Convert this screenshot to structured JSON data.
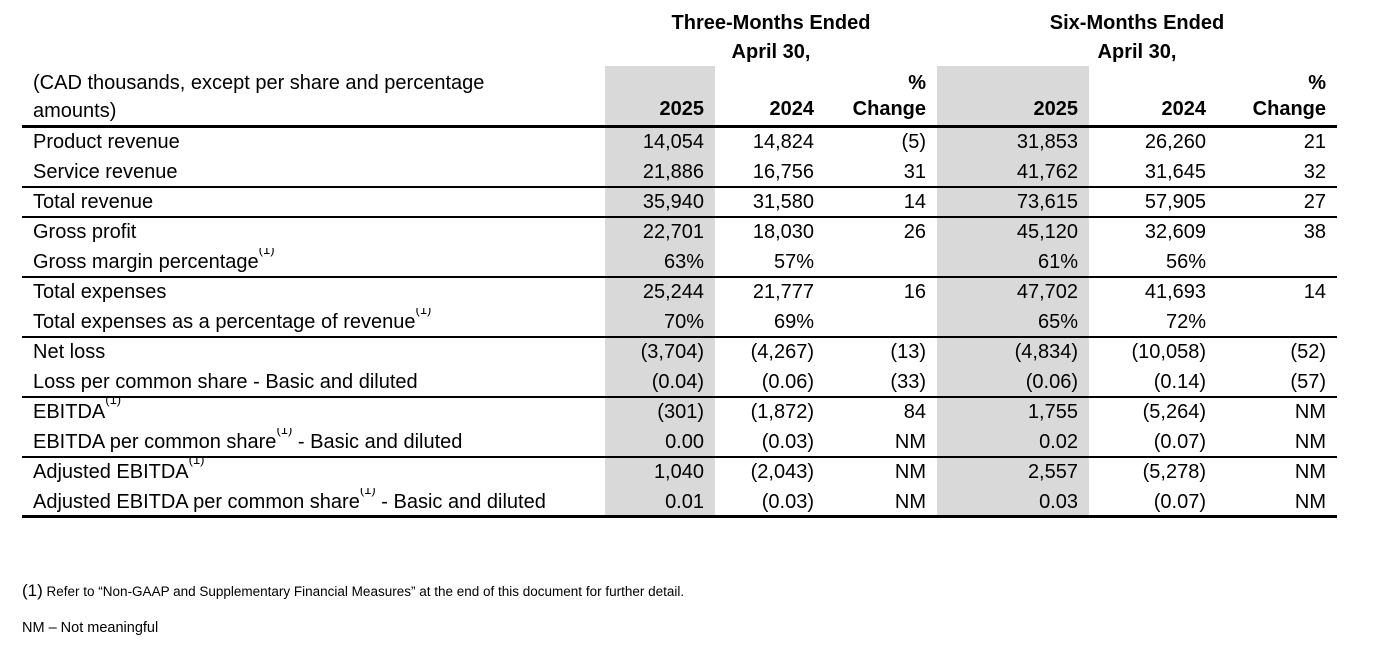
{
  "colors": {
    "shade": "#d9d9d9",
    "text": "#000000",
    "border": "#000000"
  },
  "header": {
    "period1_line1": "Three-Months Ended",
    "period1_line2": "April 30,",
    "period2_line1": "Six-Months Ended",
    "period2_line2": "April 30,",
    "caption_line1": "(CAD thousands, except per share and percentage",
    "caption_line2": "amounts)",
    "year_current": "2025",
    "year_prior": "2024",
    "pct_line1": "%",
    "pct_line2": "Change"
  },
  "rows": [
    {
      "label": "Product revenue",
      "sup": "",
      "suffix": "",
      "divider": false,
      "values": [
        "14,054",
        "14,824",
        "(5)",
        "31,853",
        "26,260",
        "21"
      ]
    },
    {
      "label": "Service revenue",
      "sup": "",
      "suffix": "",
      "divider": true,
      "values": [
        "21,886",
        "16,756",
        "31",
        "41,762",
        "31,645",
        "32"
      ]
    },
    {
      "label": "Total revenue",
      "sup": "",
      "suffix": "",
      "divider": true,
      "values": [
        "35,940",
        "31,580",
        "14",
        "73,615",
        "57,905",
        "27"
      ]
    },
    {
      "label": "Gross profit",
      "sup": "",
      "suffix": "",
      "divider": false,
      "values": [
        "22,701",
        "18,030",
        "26",
        "45,120",
        "32,609",
        "38"
      ]
    },
    {
      "label": "Gross margin percentage",
      "sup": "(1)",
      "suffix": "",
      "divider": true,
      "values": [
        "63%",
        "57%",
        "",
        "61%",
        "56%",
        ""
      ]
    },
    {
      "label": "Total expenses",
      "sup": "",
      "suffix": "",
      "divider": false,
      "values": [
        "25,244",
        "21,777",
        "16",
        "47,702",
        "41,693",
        "14"
      ]
    },
    {
      "label": "Total expenses as a percentage of revenue",
      "sup": "(1)",
      "suffix": "",
      "divider": true,
      "values": [
        "70%",
        "69%",
        "",
        "65%",
        "72%",
        ""
      ]
    },
    {
      "label": "Net loss",
      "sup": "",
      "suffix": "",
      "divider": false,
      "values": [
        "(3,704)",
        "(4,267)",
        "(13)",
        "(4,834)",
        "(10,058)",
        "(52)"
      ]
    },
    {
      "label": "Loss per common share - Basic and diluted",
      "sup": "",
      "suffix": "",
      "divider": true,
      "values": [
        "(0.04)",
        "(0.06)",
        "(33)",
        "(0.06)",
        "(0.14)",
        "(57)"
      ]
    },
    {
      "label": "EBITDA",
      "sup": "(1)",
      "suffix": "",
      "divider": false,
      "values": [
        "(301)",
        "(1,872)",
        "84",
        "1,755",
        "(5,264)",
        "NM"
      ]
    },
    {
      "label": "EBITDA per common share",
      "sup": "(1)",
      "suffix": " - Basic and diluted",
      "divider": true,
      "values": [
        "0.00",
        "(0.03)",
        "NM",
        "0.02",
        "(0.07)",
        "NM"
      ]
    },
    {
      "label": "Adjusted EBITDA",
      "sup": "(1)",
      "suffix": "",
      "divider": false,
      "values": [
        "1,040",
        "(2,043)",
        "NM",
        "2,557",
        "(5,278)",
        "NM"
      ]
    },
    {
      "label": "Adjusted EBITDA per common share",
      "sup": "(1)",
      "suffix": " - Basic and diluted",
      "divider": false,
      "values": [
        "0.01",
        "(0.03)",
        "NM",
        "0.03",
        "(0.07)",
        "NM"
      ]
    }
  ],
  "footnotes": {
    "fn1_marker": "(1)",
    "fn1_text": " Refer to “Non-GAAP and Supplementary Financial Measures” at the end of this document for further detail.",
    "nm_text": "NM – Not meaningful"
  }
}
